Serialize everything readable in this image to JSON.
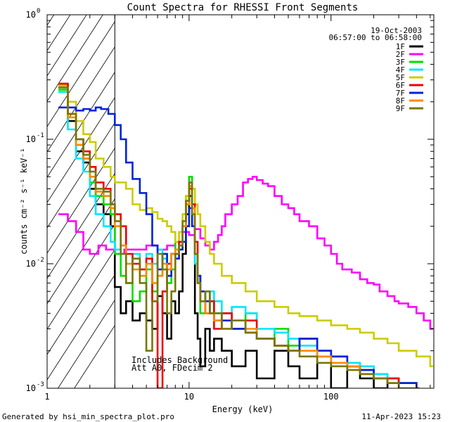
{
  "chart_data": {
    "type": "line",
    "title": "Count Spectra for RHESSI Front Segments",
    "xlabel": "Energy (keV)",
    "ylabel": "counts cm⁻² s⁻¹ keV⁻¹",
    "xscale": "log",
    "yscale": "log",
    "xlim": [
      1,
      530
    ],
    "ylim": [
      0.001,
      1
    ],
    "x_ticks": [
      {
        "v": 1,
        "label": "1"
      },
      {
        "v": 10,
        "label": "10"
      },
      {
        "v": 100,
        "label": "100"
      }
    ],
    "y_ticks": [
      {
        "v": 0.001,
        "base": "10",
        "exp": "-3"
      },
      {
        "v": 0.01,
        "base": "10",
        "exp": "-2"
      },
      {
        "v": 0.1,
        "base": "10",
        "exp": "-1"
      },
      {
        "v": 1,
        "base": "10",
        "exp": "0"
      }
    ],
    "date": "19-Oct-2003",
    "time_range": "06:57:00 to 06:58:00",
    "hatched_region": [
      1,
      3
    ],
    "annotations": [
      "Includes Background",
      "Att A0, FDecim 2"
    ],
    "legend_position": "top-right",
    "series": [
      {
        "name": "1F",
        "color": "#000000",
        "x": [
          1.2,
          1.4,
          1.6,
          1.8,
          2.0,
          2.2,
          2.5,
          2.8,
          3.0,
          3.3,
          3.6,
          4.0,
          4.5,
          5.0,
          5.5,
          6.0,
          6.5,
          7.0,
          7.5,
          8.0,
          8.5,
          9.0,
          9.5,
          10.0,
          10.5,
          11.0,
          11.5,
          12.0,
          13,
          14,
          15,
          17,
          20,
          25,
          30,
          40,
          50,
          60,
          80,
          100,
          130,
          160,
          200,
          250,
          300,
          400
        ],
        "y": [
          0.27,
          0.14,
          0.08,
          0.065,
          0.04,
          0.03,
          0.025,
          0.02,
          0.0065,
          0.004,
          0.005,
          0.0035,
          0.004,
          0.0035,
          0.003,
          0.0055,
          0.004,
          0.0025,
          0.005,
          0.004,
          0.006,
          0.012,
          0.025,
          0.035,
          0.02,
          0.004,
          0.0025,
          0.0015,
          0.003,
          0.002,
          0.0025,
          0.002,
          0.0015,
          0.002,
          0.0012,
          0.002,
          0.0015,
          0.0012,
          0.0018,
          0.001,
          0.0015,
          0.0012,
          0.001,
          0.0012,
          0.0011,
          0.001
        ]
      },
      {
        "name": "2F",
        "color": "#ff00ff",
        "x": [
          1.2,
          1.4,
          1.6,
          1.8,
          2.0,
          2.3,
          2.6,
          3.0,
          3.5,
          4.0,
          5,
          6,
          7,
          8,
          9,
          10,
          11,
          12,
          13,
          14,
          15,
          16,
          17,
          18,
          20,
          22,
          24,
          26,
          28,
          30,
          33,
          36,
          40,
          45,
          50,
          55,
          60,
          70,
          80,
          90,
          100,
          110,
          120,
          140,
          160,
          180,
          200,
          220,
          250,
          280,
          300,
          350,
          400,
          450,
          500
        ],
        "y": [
          0.025,
          0.022,
          0.018,
          0.013,
          0.012,
          0.014,
          0.013,
          0.012,
          0.013,
          0.013,
          0.014,
          0.013,
          0.014,
          0.015,
          0.018,
          0.017,
          0.019,
          0.016,
          0.014,
          0.013,
          0.015,
          0.017,
          0.02,
          0.025,
          0.03,
          0.035,
          0.045,
          0.048,
          0.05,
          0.047,
          0.044,
          0.042,
          0.035,
          0.03,
          0.028,
          0.025,
          0.022,
          0.02,
          0.016,
          0.014,
          0.012,
          0.01,
          0.009,
          0.0085,
          0.0075,
          0.007,
          0.0068,
          0.006,
          0.0055,
          0.005,
          0.0048,
          0.0045,
          0.004,
          0.0035,
          0.003
        ]
      },
      {
        "name": "3F",
        "color": "#00dd00",
        "x": [
          1.2,
          1.4,
          1.6,
          1.8,
          2.0,
          2.2,
          2.5,
          2.8,
          3.0,
          3.3,
          3.6,
          4.0,
          4.5,
          5.0,
          5.5,
          6.0,
          6.5,
          7.0,
          7.5,
          8.0,
          8.5,
          9.0,
          9.5,
          10.0,
          10.5,
          11.0,
          11.5,
          12.0,
          13,
          14,
          15,
          17,
          20,
          25,
          30,
          40,
          50,
          60,
          80,
          100,
          130,
          160,
          200,
          250,
          300,
          400
        ],
        "y": [
          0.25,
          0.15,
          0.09,
          0.07,
          0.045,
          0.035,
          0.03,
          0.025,
          0.012,
          0.008,
          0.007,
          0.005,
          0.006,
          0.009,
          0.006,
          0.008,
          0.012,
          0.007,
          0.009,
          0.015,
          0.013,
          0.02,
          0.035,
          0.05,
          0.03,
          0.012,
          0.007,
          0.004,
          0.006,
          0.005,
          0.004,
          0.004,
          0.003,
          0.004,
          0.0025,
          0.003,
          0.0022,
          0.0025,
          0.002,
          0.0018,
          0.0015,
          0.0014,
          0.0013,
          0.0012,
          0.0011,
          0.001
        ]
      },
      {
        "name": "4F",
        "color": "#00e5ff",
        "x": [
          1.2,
          1.4,
          1.6,
          1.8,
          2.0,
          2.2,
          2.5,
          2.8,
          3.0,
          3.3,
          3.6,
          4.0,
          4.5,
          5.0,
          5.5,
          6.0,
          6.5,
          7.0,
          7.5,
          8.0,
          8.5,
          9.0,
          9.5,
          10.0,
          10.5,
          11.0,
          11.5,
          12.0,
          13,
          14,
          15,
          17,
          20,
          25,
          30,
          40,
          50,
          60,
          80,
          100,
          130,
          160,
          200,
          250,
          300,
          400
        ],
        "y": [
          0.24,
          0.12,
          0.07,
          0.055,
          0.035,
          0.025,
          0.02,
          0.015,
          0.013,
          0.014,
          0.01,
          0.012,
          0.009,
          0.012,
          0.01,
          0.013,
          0.011,
          0.01,
          0.012,
          0.013,
          0.015,
          0.02,
          0.03,
          0.045,
          0.03,
          0.01,
          0.008,
          0.006,
          0.005,
          0.006,
          0.005,
          0.004,
          0.0045,
          0.004,
          0.003,
          0.0028,
          0.0025,
          0.0022,
          0.002,
          0.0018,
          0.0016,
          0.0015,
          0.0013,
          0.0012,
          0.0011,
          0.001
        ]
      },
      {
        "name": "5F",
        "color": "#cccc00",
        "x": [
          1.2,
          1.4,
          1.6,
          1.8,
          2.0,
          2.2,
          2.5,
          2.8,
          3.0,
          3.3,
          3.6,
          4.0,
          4.5,
          5.0,
          5.5,
          6.0,
          6.5,
          7.0,
          7.5,
          8.0,
          8.5,
          9.0,
          9.5,
          10.0,
          10.5,
          11.0,
          11.5,
          12.0,
          13,
          14,
          15,
          17,
          20,
          25,
          30,
          40,
          50,
          60,
          80,
          100,
          130,
          160,
          200,
          250,
          300,
          400,
          500
        ],
        "y": [
          0.27,
          0.2,
          0.14,
          0.11,
          0.095,
          0.07,
          0.06,
          0.05,
          0.045,
          0.045,
          0.04,
          0.03,
          0.027,
          0.028,
          0.026,
          0.023,
          0.022,
          0.02,
          0.018,
          0.015,
          0.018,
          0.025,
          0.035,
          0.045,
          0.04,
          0.03,
          0.025,
          0.02,
          0.015,
          0.012,
          0.01,
          0.008,
          0.007,
          0.006,
          0.005,
          0.0045,
          0.004,
          0.0038,
          0.0035,
          0.0032,
          0.003,
          0.0028,
          0.0025,
          0.0023,
          0.002,
          0.0018,
          0.0015
        ]
      },
      {
        "name": "6F",
        "color": "#ee0000",
        "x": [
          1.2,
          1.4,
          1.6,
          1.8,
          2.0,
          2.2,
          2.5,
          2.8,
          3.0,
          3.3,
          3.6,
          4.0,
          4.5,
          5.0,
          5.5,
          6.0,
          6.5,
          7.0,
          7.5,
          8.0,
          8.5,
          9.0,
          9.5,
          10.0,
          10.5,
          11.0,
          11.5,
          12.0,
          13,
          14,
          15,
          17,
          20,
          25,
          30,
          40,
          50,
          60,
          80,
          100,
          130,
          160,
          200,
          250,
          300,
          400
        ],
        "y": [
          0.28,
          0.16,
          0.1,
          0.08,
          0.06,
          0.045,
          0.04,
          0.03,
          0.025,
          0.02,
          0.012,
          0.01,
          0.009,
          0.011,
          0.005,
          0.001,
          0.006,
          0.01,
          0.012,
          0.012,
          0.015,
          0.02,
          0.03,
          0.04,
          0.03,
          0.015,
          0.008,
          0.005,
          0.004,
          0.005,
          0.003,
          0.004,
          0.003,
          0.0035,
          0.0025,
          0.0022,
          0.002,
          0.0025,
          0.002,
          0.0018,
          0.0015,
          0.0014,
          0.0012,
          0.0012,
          0.0011,
          0.001
        ]
      },
      {
        "name": "7F",
        "color": "#0022dd",
        "x": [
          1.2,
          1.4,
          1.6,
          1.8,
          2.0,
          2.2,
          2.4,
          2.7,
          3.0,
          3.3,
          3.6,
          4.0,
          4.5,
          5.0,
          5.5,
          6.0,
          6.5,
          7.0,
          7.5,
          8.0,
          8.5,
          9.0,
          9.5,
          10.0,
          10.5,
          11.0,
          11.5,
          12.0,
          13,
          14,
          15,
          17,
          20,
          25,
          30,
          40,
          50,
          60,
          80,
          100,
          130,
          160,
          200,
          250,
          300,
          400
        ],
        "y": [
          0.18,
          0.18,
          0.17,
          0.175,
          0.17,
          0.18,
          0.175,
          0.16,
          0.13,
          0.1,
          0.065,
          0.048,
          0.037,
          0.025,
          0.014,
          0.009,
          0.012,
          0.008,
          0.012,
          0.011,
          0.013,
          0.015,
          0.02,
          0.028,
          0.02,
          0.012,
          0.008,
          0.006,
          0.005,
          0.004,
          0.0035,
          0.0035,
          0.003,
          0.0028,
          0.0025,
          0.0022,
          0.002,
          0.0025,
          0.002,
          0.0018,
          0.0015,
          0.0014,
          0.0012,
          0.0011,
          0.0011,
          0.001
        ]
      },
      {
        "name": "8F",
        "color": "#ff8800",
        "x": [
          1.2,
          1.4,
          1.6,
          1.8,
          2.0,
          2.2,
          2.5,
          2.8,
          3.0,
          3.3,
          3.6,
          4.0,
          4.5,
          5.0,
          5.5,
          6.0,
          6.5,
          7.0,
          7.5,
          8.0,
          8.5,
          9.0,
          9.5,
          10.0,
          10.5,
          11.0,
          11.5,
          12.0,
          13,
          14,
          15,
          17,
          20,
          25,
          30,
          40,
          50,
          60,
          80,
          100,
          130,
          160,
          200,
          250,
          300,
          400
        ],
        "y": [
          0.26,
          0.15,
          0.09,
          0.07,
          0.05,
          0.038,
          0.035,
          0.028,
          0.02,
          0.014,
          0.01,
          0.009,
          0.008,
          0.01,
          0.007,
          0.008,
          0.01,
          0.009,
          0.012,
          0.013,
          0.014,
          0.02,
          0.03,
          0.042,
          0.028,
          0.012,
          0.007,
          0.005,
          0.004,
          0.004,
          0.0035,
          0.003,
          0.0035,
          0.003,
          0.0025,
          0.0022,
          0.002,
          0.002,
          0.0018,
          0.0016,
          0.0015,
          0.0013,
          0.0012,
          0.0011,
          0.001,
          0.001
        ]
      },
      {
        "name": "9F",
        "color": "#777700",
        "x": [
          1.2,
          1.4,
          1.6,
          1.8,
          2.0,
          2.2,
          2.5,
          2.8,
          3.0,
          3.3,
          3.6,
          4.0,
          4.5,
          5.0,
          5.5,
          6.0,
          6.5,
          7.0,
          7.5,
          8.0,
          8.5,
          9.0,
          9.5,
          10.0,
          10.5,
          11.0,
          11.5,
          12.0,
          13,
          14,
          15,
          17,
          20,
          25,
          30,
          40,
          50,
          60,
          80,
          100,
          130,
          160,
          200,
          250,
          300,
          400
        ],
        "y": [
          0.26,
          0.16,
          0.1,
          0.075,
          0.055,
          0.04,
          0.038,
          0.03,
          0.022,
          0.012,
          0.007,
          0.011,
          0.007,
          0.002,
          0.005,
          0.012,
          0.009,
          0.004,
          0.006,
          0.012,
          0.014,
          0.022,
          0.032,
          0.045,
          0.025,
          0.012,
          0.007,
          0.005,
          0.006,
          0.004,
          0.004,
          0.003,
          0.0035,
          0.0028,
          0.0025,
          0.0022,
          0.002,
          0.0018,
          0.0016,
          0.0015,
          0.0014,
          0.0013,
          0.0012,
          0.0011,
          0.001,
          0.001
        ]
      }
    ]
  },
  "footer": {
    "left": "Generated by hsi_min_spectra_plot.pro",
    "right": "11-Apr-2023 15:23"
  }
}
